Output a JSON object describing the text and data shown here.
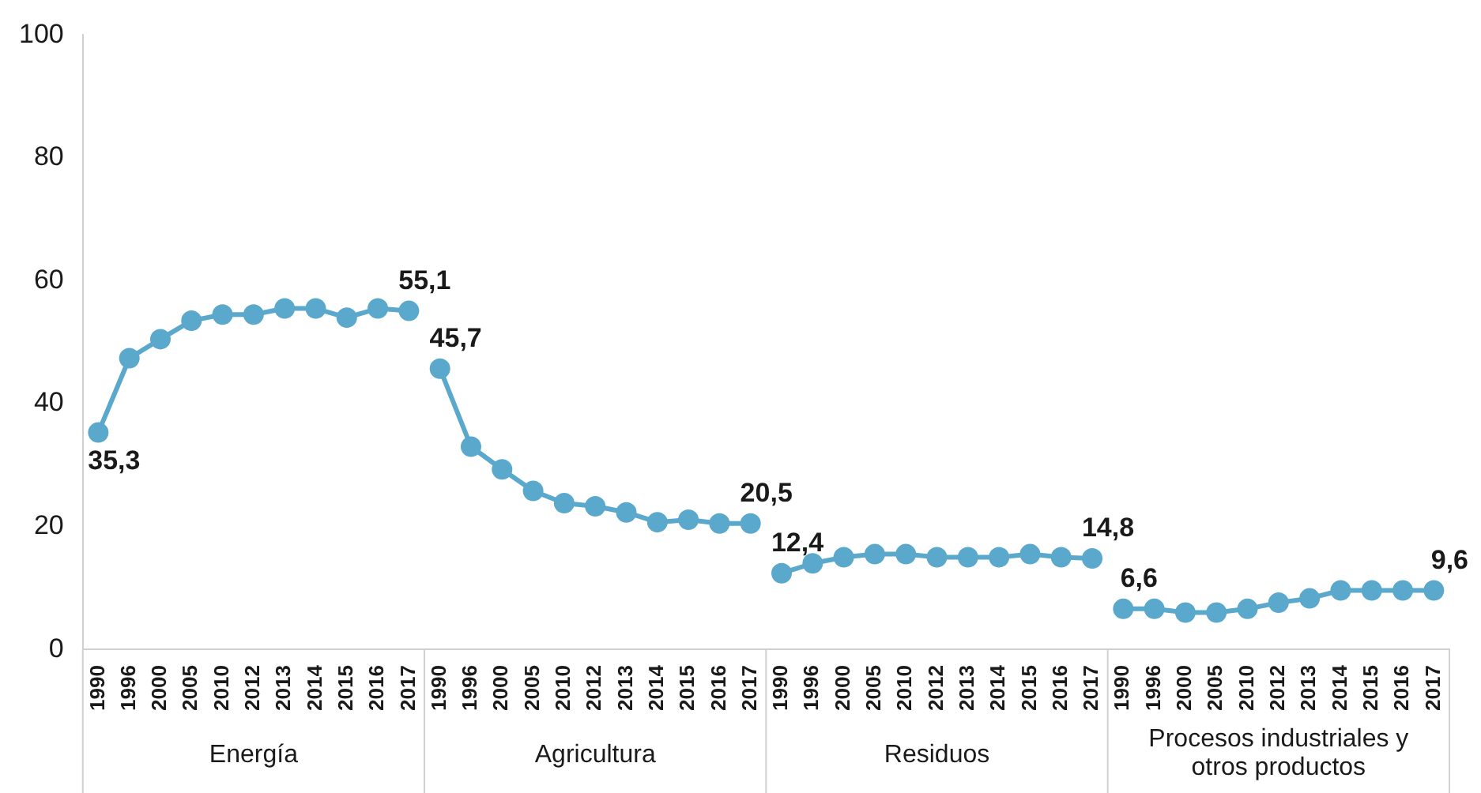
{
  "chart_data": {
    "type": "line",
    "categories": [
      "1990",
      "1996",
      "2000",
      "2005",
      "2010",
      "2012",
      "2013",
      "2014",
      "2015",
      "2016",
      "2017",
      "1990",
      "1996",
      "2000",
      "2005",
      "2010",
      "2012",
      "2013",
      "2014",
      "2015",
      "2016",
      "2017",
      "1990",
      "1996",
      "2000",
      "2005",
      "2010",
      "2012",
      "2013",
      "2014",
      "2015",
      "2016",
      "2017",
      "1990",
      "1996",
      "2000",
      "2005",
      "2010",
      "2012",
      "2013",
      "2014",
      "2015",
      "2016",
      "2017"
    ],
    "series": [
      {
        "color": "#5aa9cc",
        "values": [
          35.3,
          47.4,
          50.5,
          53.5,
          54.5,
          54.5,
          55.5,
          55.5,
          54,
          55.5,
          55.1,
          null,
          null,
          null,
          null,
          null,
          null,
          null,
          null,
          null,
          null,
          null,
          null,
          null,
          null,
          null,
          null,
          null,
          null,
          null,
          null,
          null,
          null,
          null,
          null,
          null,
          null,
          null,
          null,
          null,
          null,
          null,
          null,
          null
        ],
        "value_labels": [
          "35,3",
          null,
          null,
          null,
          null,
          null,
          null,
          null,
          null,
          null,
          "55,1",
          null,
          null,
          null,
          null,
          null,
          null,
          null,
          null,
          null,
          null,
          null,
          null,
          null,
          null,
          null,
          null,
          null,
          null,
          null,
          null,
          null,
          null,
          null,
          null,
          null,
          null,
          null,
          null,
          null,
          null,
          null,
          null,
          null
        ]
      },
      {
        "color": "#5aa9cc",
        "values": [
          null,
          null,
          null,
          null,
          null,
          null,
          null,
          null,
          null,
          null,
          null,
          45.7,
          33,
          29.3,
          25.8,
          23.8,
          23.3,
          22.3,
          20.7,
          21.1,
          20.5,
          20.5,
          null,
          null,
          null,
          null,
          null,
          null,
          null,
          null,
          null,
          null,
          null,
          null,
          null,
          null,
          null,
          null,
          null,
          null,
          null,
          null,
          null,
          null
        ],
        "value_labels": [
          null,
          null,
          null,
          null,
          null,
          null,
          null,
          null,
          null,
          null,
          null,
          "45,7",
          null,
          null,
          null,
          null,
          null,
          null,
          null,
          null,
          null,
          "20,5",
          null,
          null,
          null,
          null,
          null,
          null,
          null,
          null,
          null,
          null,
          null,
          null,
          null,
          null,
          null,
          null,
          null,
          null,
          null,
          null,
          null,
          null
        ]
      },
      {
        "color": "#5aa9cc",
        "values": [
          null,
          null,
          null,
          null,
          null,
          null,
          null,
          null,
          null,
          null,
          null,
          null,
          null,
          null,
          null,
          null,
          null,
          null,
          null,
          null,
          null,
          null,
          12.4,
          14,
          15,
          15.5,
          15.5,
          15,
          15,
          15,
          15.5,
          15,
          14.8,
          null,
          null,
          null,
          null,
          null,
          null,
          null,
          null,
          null,
          null,
          null
        ],
        "value_labels": [
          null,
          null,
          null,
          null,
          null,
          null,
          null,
          null,
          null,
          null,
          null,
          null,
          null,
          null,
          null,
          null,
          null,
          null,
          null,
          null,
          null,
          null,
          "12,4",
          null,
          null,
          null,
          null,
          null,
          null,
          null,
          null,
          null,
          "14,8",
          null,
          null,
          null,
          null,
          null,
          null,
          null,
          null,
          null,
          null,
          null
        ]
      },
      {
        "color": "#5aa9cc",
        "values": [
          null,
          null,
          null,
          null,
          null,
          null,
          null,
          null,
          null,
          null,
          null,
          null,
          null,
          null,
          null,
          null,
          null,
          null,
          null,
          null,
          null,
          null,
          null,
          null,
          null,
          null,
          null,
          null,
          null,
          null,
          null,
          null,
          null,
          6.6,
          6.6,
          6,
          6,
          6.6,
          7.6,
          8.3,
          9.6,
          9.6,
          9.6,
          9.6
        ],
        "value_labels": [
          null,
          null,
          null,
          null,
          null,
          null,
          null,
          null,
          null,
          null,
          null,
          null,
          null,
          null,
          null,
          null,
          null,
          null,
          null,
          null,
          null,
          null,
          null,
          null,
          null,
          null,
          null,
          null,
          null,
          null,
          null,
          null,
          null,
          "6,6",
          null,
          null,
          null,
          null,
          null,
          null,
          null,
          null,
          null,
          "9,6"
        ]
      }
    ],
    "annotations": [
      "Energía",
      "Agricultura",
      "Residuos",
      "Procesos industriales y otros productos"
    ],
    "ylim": [
      0,
      100
    ],
    "yticks": [
      0,
      20,
      40,
      60,
      80,
      100
    ],
    "grid": false,
    "legend": false,
    "marker": "circle",
    "line_style": "solid"
  }
}
